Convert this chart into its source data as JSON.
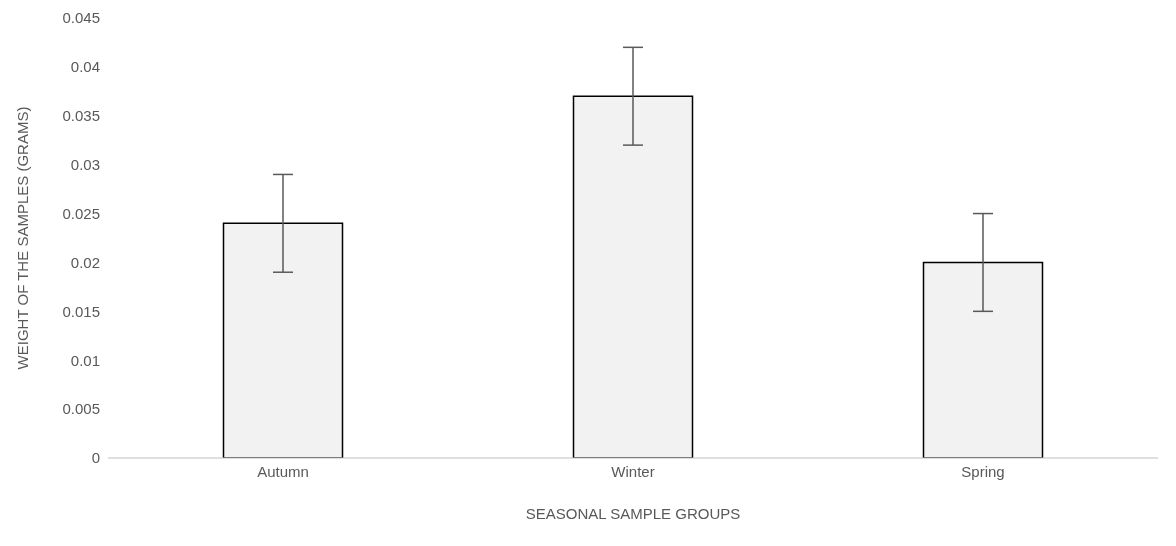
{
  "chart_data": {
    "type": "bar",
    "xlabel": "SEASONAL SAMPLE GROUPS",
    "ylabel": "WEIGHT  OF THE SAMPLES (GRAMS)",
    "categories": [
      "Autumn",
      "Winter",
      "Spring"
    ],
    "values": [
      0.024,
      0.037,
      0.02
    ],
    "errors": [
      0.005,
      0.005,
      0.005
    ],
    "color": "#f2f2f2",
    "ylim": [
      0,
      0.045
    ],
    "yticks": [
      0,
      0.005,
      0.01,
      0.015,
      0.02,
      0.025,
      0.03,
      0.035,
      0.04,
      0.045
    ],
    "grid": false,
    "legend": false
  }
}
